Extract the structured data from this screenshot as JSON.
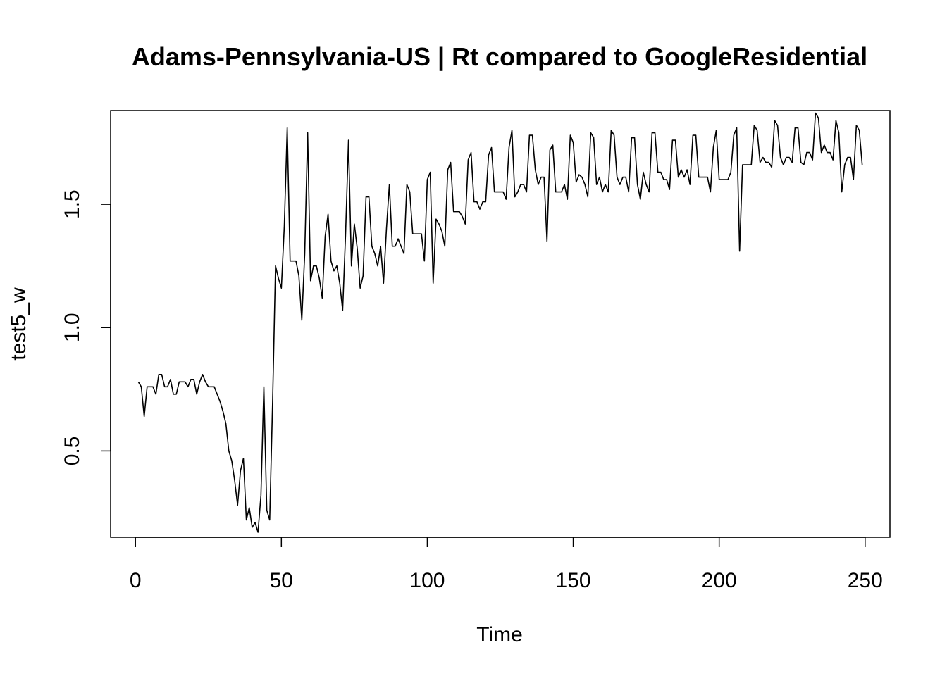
{
  "chart_data": {
    "type": "line",
    "title": "Adams-Pennsylvania-US | Rt compared to GoogleResidential",
    "xlabel": "Time",
    "ylabel": "test5_w",
    "xlim": [
      -8.5,
      258.5
    ],
    "ylim": [
      0.15,
      1.88
    ],
    "x_ticks": [
      0,
      50,
      100,
      150,
      200,
      250
    ],
    "x_tick_labels": [
      "0",
      "50",
      "100",
      "150",
      "200",
      "250"
    ],
    "y_ticks": [
      0.5,
      1.0,
      1.5
    ],
    "y_tick_labels": [
      "0.5",
      "1.0",
      "1.5"
    ],
    "grid": false,
    "legend": "none",
    "x_start": 1,
    "series": [
      {
        "color": "#000000",
        "values": [
          0.78,
          0.76,
          0.64,
          0.76,
          0.76,
          0.76,
          0.73,
          0.81,
          0.81,
          0.76,
          0.76,
          0.79,
          0.73,
          0.73,
          0.78,
          0.78,
          0.78,
          0.76,
          0.79,
          0.79,
          0.73,
          0.78,
          0.81,
          0.78,
          0.76,
          0.76,
          0.76,
          0.73,
          0.7,
          0.66,
          0.61,
          0.5,
          0.46,
          0.38,
          0.28,
          0.42,
          0.47,
          0.22,
          0.27,
          0.19,
          0.21,
          0.17,
          0.32,
          0.76,
          0.26,
          0.22,
          0.7,
          1.25,
          1.2,
          1.16,
          1.41,
          1.81,
          1.27,
          1.27,
          1.27,
          1.21,
          1.03,
          1.3,
          1.79,
          1.19,
          1.25,
          1.25,
          1.2,
          1.12,
          1.37,
          1.46,
          1.27,
          1.23,
          1.25,
          1.18,
          1.07,
          1.38,
          1.76,
          1.25,
          1.42,
          1.32,
          1.16,
          1.21,
          1.53,
          1.53,
          1.33,
          1.3,
          1.25,
          1.33,
          1.18,
          1.4,
          1.58,
          1.33,
          1.33,
          1.36,
          1.33,
          1.3,
          1.58,
          1.55,
          1.38,
          1.38,
          1.38,
          1.38,
          1.27,
          1.6,
          1.63,
          1.18,
          1.44,
          1.42,
          1.39,
          1.33,
          1.64,
          1.67,
          1.47,
          1.47,
          1.47,
          1.45,
          1.42,
          1.68,
          1.71,
          1.51,
          1.51,
          1.48,
          1.51,
          1.51,
          1.7,
          1.73,
          1.55,
          1.55,
          1.55,
          1.55,
          1.52,
          1.73,
          1.8,
          1.53,
          1.55,
          1.58,
          1.58,
          1.55,
          1.78,
          1.78,
          1.64,
          1.58,
          1.61,
          1.61,
          1.35,
          1.72,
          1.74,
          1.55,
          1.55,
          1.55,
          1.58,
          1.52,
          1.78,
          1.75,
          1.59,
          1.62,
          1.61,
          1.58,
          1.53,
          1.79,
          1.77,
          1.58,
          1.61,
          1.55,
          1.58,
          1.55,
          1.8,
          1.78,
          1.61,
          1.58,
          1.61,
          1.61,
          1.55,
          1.77,
          1.77,
          1.58,
          1.52,
          1.63,
          1.58,
          1.55,
          1.79,
          1.79,
          1.63,
          1.63,
          1.6,
          1.6,
          1.56,
          1.76,
          1.76,
          1.61,
          1.64,
          1.61,
          1.64,
          1.58,
          1.78,
          1.78,
          1.61,
          1.61,
          1.61,
          1.61,
          1.55,
          1.73,
          1.8,
          1.6,
          1.6,
          1.6,
          1.6,
          1.63,
          1.78,
          1.81,
          1.31,
          1.66,
          1.66,
          1.66,
          1.66,
          1.82,
          1.8,
          1.67,
          1.69,
          1.67,
          1.67,
          1.65,
          1.84,
          1.82,
          1.69,
          1.66,
          1.69,
          1.69,
          1.67,
          1.81,
          1.81,
          1.67,
          1.66,
          1.71,
          1.71,
          1.68,
          1.87,
          1.85,
          1.71,
          1.74,
          1.71,
          1.71,
          1.68,
          1.84,
          1.79,
          1.55,
          1.66,
          1.69,
          1.69,
          1.6,
          1.82,
          1.8,
          1.66
        ]
      }
    ]
  }
}
